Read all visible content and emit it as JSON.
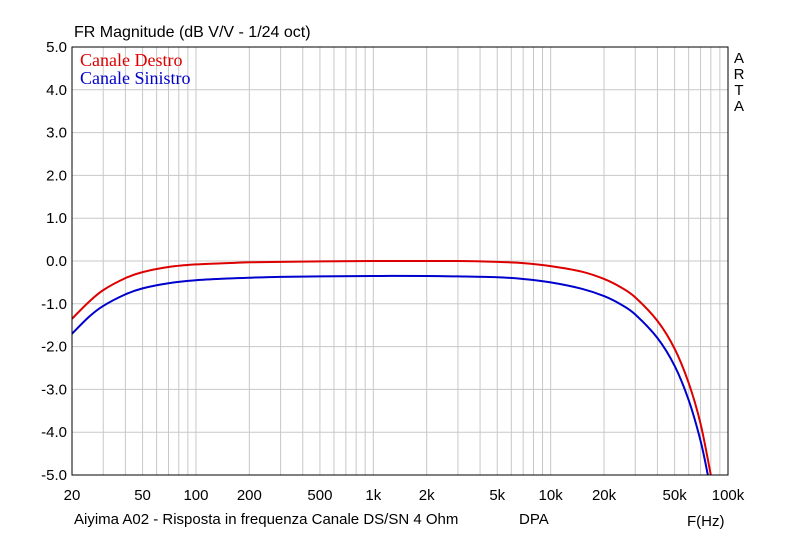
{
  "chart_data": {
    "type": "line",
    "title": "FR Magnitude (dB V/V - 1/24 oct)",
    "xlabel": "F(Hz)",
    "footer_left": "Aiyima A02 - Risposta in frequenza Canale DS/SN 4 Ohm",
    "footer_mid": "DPA",
    "side_label": [
      "A",
      "R",
      "T",
      "A"
    ],
    "x_scale": "log",
    "xlim": [
      20,
      100000
    ],
    "ylim": [
      -5.0,
      5.0
    ],
    "grid": true,
    "legend_position": "top-left",
    "y_ticks": [
      {
        "value": 5.0,
        "label": "5.0"
      },
      {
        "value": 4.0,
        "label": "4.0"
      },
      {
        "value": 3.0,
        "label": "3.0"
      },
      {
        "value": 2.0,
        "label": "2.0"
      },
      {
        "value": 1.0,
        "label": "1.0"
      },
      {
        "value": 0.0,
        "label": "0.0"
      },
      {
        "value": -1.0,
        "label": "-1.0"
      },
      {
        "value": -2.0,
        "label": "-2.0"
      },
      {
        "value": -3.0,
        "label": "-3.0"
      },
      {
        "value": -4.0,
        "label": "-4.0"
      },
      {
        "value": -5.0,
        "label": "-5.0"
      }
    ],
    "x_ticks": [
      {
        "value": 20,
        "label": "20"
      },
      {
        "value": 50,
        "label": "50"
      },
      {
        "value": 100,
        "label": "100"
      },
      {
        "value": 200,
        "label": "200"
      },
      {
        "value": 500,
        "label": "500"
      },
      {
        "value": 1000,
        "label": "1k"
      },
      {
        "value": 2000,
        "label": "2k"
      },
      {
        "value": 5000,
        "label": "5k"
      },
      {
        "value": 10000,
        "label": "10k"
      },
      {
        "value": 20000,
        "label": "20k"
      },
      {
        "value": 50000,
        "label": "50k"
      },
      {
        "value": 100000,
        "label": "100k"
      }
    ],
    "series": [
      {
        "name": "Canale Destro",
        "color": "#dd0000",
        "points": [
          [
            20,
            -1.35
          ],
          [
            25,
            -0.95
          ],
          [
            30,
            -0.68
          ],
          [
            40,
            -0.4
          ],
          [
            50,
            -0.26
          ],
          [
            70,
            -0.14
          ],
          [
            100,
            -0.08
          ],
          [
            150,
            -0.05
          ],
          [
            200,
            -0.03
          ],
          [
            300,
            -0.02
          ],
          [
            500,
            -0.01
          ],
          [
            1000,
            0.0
          ],
          [
            2000,
            0.0
          ],
          [
            3000,
            0.0
          ],
          [
            5000,
            -0.02
          ],
          [
            7000,
            -0.05
          ],
          [
            10000,
            -0.12
          ],
          [
            15000,
            -0.25
          ],
          [
            20000,
            -0.42
          ],
          [
            25000,
            -0.62
          ],
          [
            30000,
            -0.85
          ],
          [
            40000,
            -1.4
          ],
          [
            50000,
            -2.05
          ],
          [
            60000,
            -2.85
          ],
          [
            70000,
            -3.8
          ],
          [
            80000,
            -5.0
          ]
        ]
      },
      {
        "name": "Canale Sinistro",
        "color": "#0000cc",
        "points": [
          [
            20,
            -1.7
          ],
          [
            25,
            -1.3
          ],
          [
            30,
            -1.05
          ],
          [
            40,
            -0.78
          ],
          [
            50,
            -0.64
          ],
          [
            70,
            -0.52
          ],
          [
            100,
            -0.45
          ],
          [
            150,
            -0.41
          ],
          [
            200,
            -0.39
          ],
          [
            300,
            -0.37
          ],
          [
            500,
            -0.36
          ],
          [
            1000,
            -0.35
          ],
          [
            2000,
            -0.35
          ],
          [
            3000,
            -0.36
          ],
          [
            5000,
            -0.38
          ],
          [
            7000,
            -0.42
          ],
          [
            10000,
            -0.5
          ],
          [
            15000,
            -0.65
          ],
          [
            20000,
            -0.82
          ],
          [
            25000,
            -1.02
          ],
          [
            30000,
            -1.25
          ],
          [
            40000,
            -1.8
          ],
          [
            50000,
            -2.45
          ],
          [
            60000,
            -3.25
          ],
          [
            70000,
            -4.2
          ],
          [
            77000,
            -5.0
          ]
        ]
      }
    ]
  }
}
